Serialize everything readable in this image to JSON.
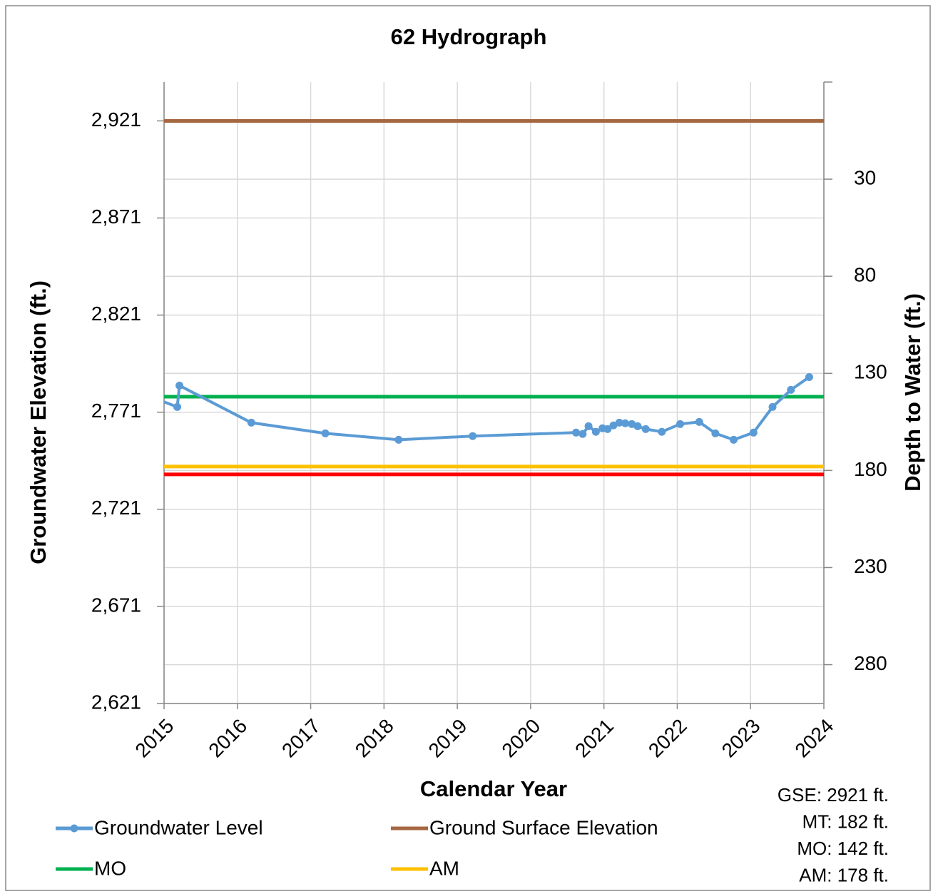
{
  "chart_data": {
    "type": "line",
    "title": "62 Hydrograph",
    "xlabel": "Calendar Year",
    "ylabel": "Groundwater Elevation (ft.)",
    "y2label": "Depth to Water (ft.)",
    "xlim": [
      2015,
      2024
    ],
    "xticks": [
      2015,
      2016,
      2017,
      2018,
      2019,
      2020,
      2021,
      2022,
      2023,
      2024
    ],
    "ylim": [
      2621,
      2941
    ],
    "yticks": [
      {
        "value": 2621,
        "label": "2,621"
      },
      {
        "value": 2671,
        "label": "2,671"
      },
      {
        "value": 2721,
        "label": "2,721"
      },
      {
        "value": 2771,
        "label": "2,771"
      },
      {
        "value": 2821,
        "label": "2,821"
      },
      {
        "value": 2871,
        "label": "2,871"
      },
      {
        "value": 2921,
        "label": "2,921"
      }
    ],
    "y2lim": [
      300,
      -20
    ],
    "y2ticks": [
      30,
      80,
      130,
      180,
      230,
      280
    ],
    "grid": true,
    "series": [
      {
        "name": "Groundwater Level",
        "color": "#5b9bd5",
        "markers": true,
        "x": [
          2015.0,
          2015.18,
          2015.21,
          2016.19,
          2017.2,
          2018.2,
          2019.21,
          2020.62,
          2020.71,
          2020.79,
          2020.89,
          2020.98,
          2021.05,
          2021.13,
          2021.21,
          2021.29,
          2021.38,
          2021.46,
          2021.57,
          2021.79,
          2022.04,
          2022.3,
          2022.52,
          2022.77,
          2023.04,
          2023.3,
          2023.55,
          2023.8
        ],
        "values": [
          2776.3,
          2773.7,
          2784.7,
          2765.6,
          2760.1,
          2756.8,
          2758.7,
          2760.5,
          2759.8,
          2763.8,
          2760.9,
          2762.7,
          2762.3,
          2764.2,
          2765.6,
          2765.3,
          2764.9,
          2763.8,
          2762.3,
          2760.9,
          2764.9,
          2766.0,
          2760.1,
          2756.8,
          2760.5,
          2773.7,
          2782.5,
          2789.1
        ]
      },
      {
        "name": "Ground Surface Elevation",
        "color": "#a5673f",
        "x": [
          2015,
          2024
        ],
        "values": [
          2921,
          2921
        ]
      },
      {
        "name": "MO",
        "color": "#00b050",
        "x": [
          2015,
          2024
        ],
        "values": [
          2779,
          2779
        ]
      },
      {
        "name": "AM",
        "color": "#ffc000",
        "x": [
          2015,
          2024
        ],
        "values": [
          2743,
          2743
        ]
      },
      {
        "color": "#ff0000",
        "x": [
          2015,
          2024
        ],
        "values": [
          2739,
          2739
        ]
      }
    ],
    "annotations": [
      "GSE: 2921 ft.",
      "MT: 182 ft.",
      "MO: 142 ft.",
      "AM: 178 ft."
    ]
  }
}
